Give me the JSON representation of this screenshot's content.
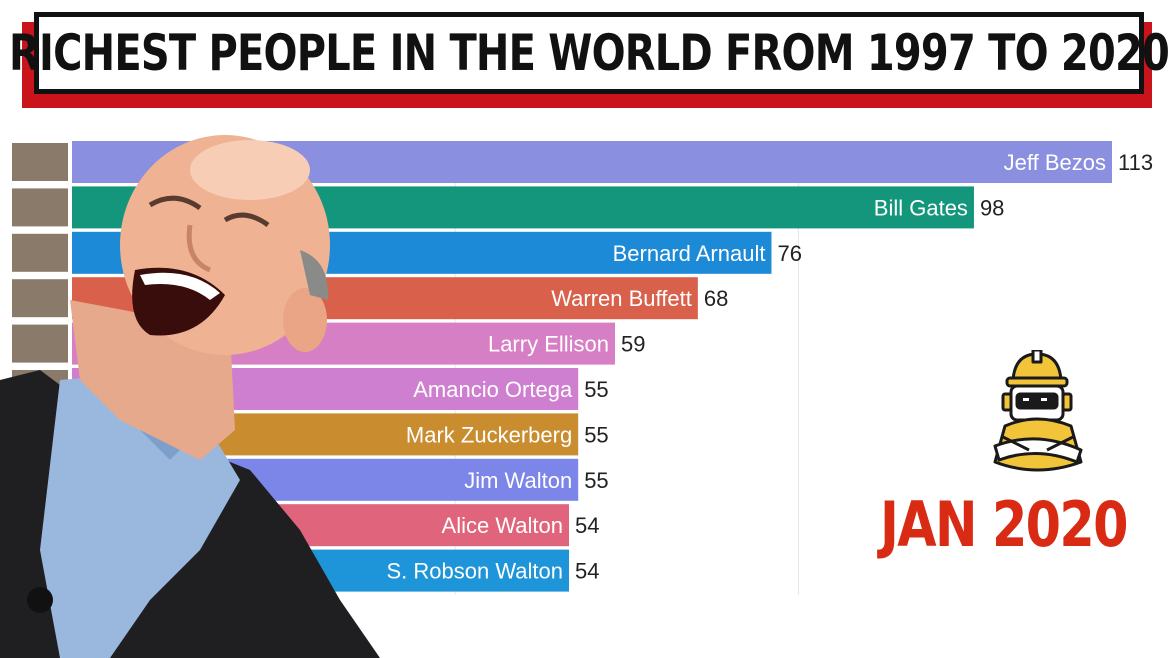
{
  "title": "RICHEST PEOPLE IN THE WORLD FROM 1997 TO 2020",
  "date_label": "JAN 2020",
  "colors": {
    "title_accent": "#c8141a",
    "date": "#d92b14"
  },
  "chart_data": {
    "type": "bar",
    "orientation": "horizontal",
    "title": "RICHEST PEOPLE IN THE WORLD FROM 1997 TO 2020",
    "xlabel": "",
    "ylabel": "",
    "xlim": [
      0,
      113
    ],
    "grid": true,
    "categories": [
      "Jeff Bezos",
      "Bill Gates",
      "Bernard Arnault",
      "Warren Buffett",
      "Larry Ellison",
      "Amancio Ortega",
      "Mark Zuckerberg",
      "Jim Walton",
      "Alice Walton",
      "S. Robson Walton"
    ],
    "value_labels": [
      "113",
      "98",
      "76",
      "68",
      "59",
      "55",
      "55",
      "55",
      "54",
      "54"
    ],
    "values": [
      113,
      98,
      76,
      68,
      59,
      55,
      55,
      55,
      54,
      54
    ],
    "colors": [
      "#8a8fdf",
      "#13967c",
      "#1c8ad6",
      "#d9604a",
      "#d67fc4",
      "#cf7fcf",
      "#c98c2e",
      "#7c86e8",
      "#e0647b",
      "#1e95d8"
    ]
  }
}
